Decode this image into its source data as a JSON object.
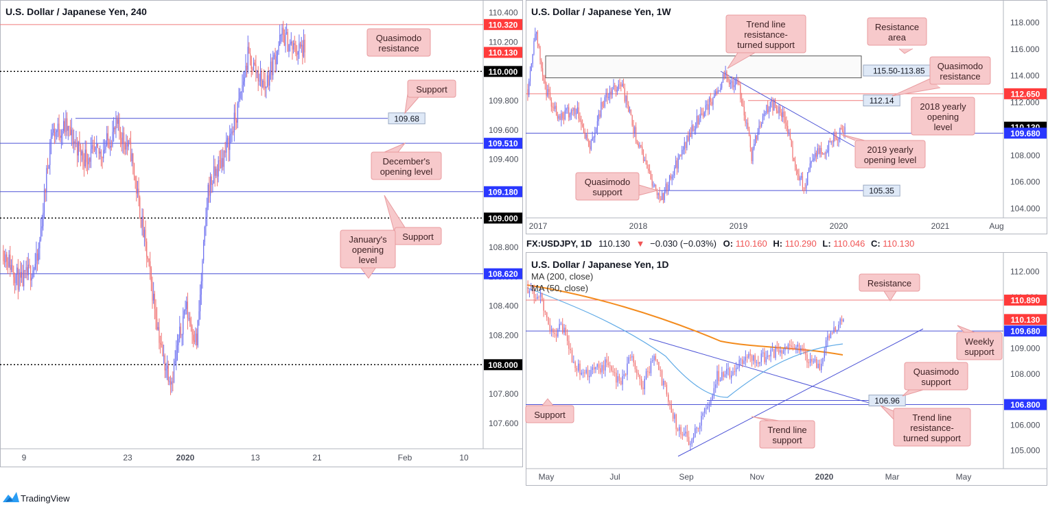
{
  "colors": {
    "up": "#6b6ef0",
    "down": "#f07070",
    "panel_border": "#b2b5be",
    "axis_text": "#4a4e59",
    "note_fill": "#f7c9cb",
    "note_stroke": "#e89a9e",
    "note_text": "#3b1f22",
    "box_fill": "#dfe9f7",
    "box_stroke": "#9aa9c2",
    "blue_line": "#4b52d6",
    "red_line": "#f07a7a",
    "ma200": "#f38b1d",
    "ma50": "#5da9e6",
    "price_red": "#ff3b3b",
    "price_blue": "#2a38ff",
    "price_black": "#000000"
  },
  "logo": {
    "text": "TradingView",
    "icon": "tradingview-logo-icon"
  },
  "chart_data": [
    {
      "id": "h4",
      "type": "candlestick",
      "title": "U.S. Dollar / Japanese Yen, 240",
      "x_ticks": [
        "9",
        "23",
        "2020",
        "13",
        "21",
        "Feb",
        "10"
      ],
      "y_ticks": [
        "110.400",
        "110.200",
        "109.800",
        "109.600",
        "109.400",
        "108.800",
        "108.600",
        "108.400",
        "108.200",
        "107.800",
        "107.600"
      ],
      "ylim": [
        107.45,
        110.45
      ],
      "candles_approx": {
        "start": 108.78,
        "anchors": [
          [
            0,
            108.78
          ],
          [
            15,
            108.55
          ],
          [
            30,
            108.7
          ],
          [
            42,
            109.58
          ],
          [
            55,
            109.62
          ],
          [
            70,
            109.42
          ],
          [
            85,
            109.44
          ],
          [
            100,
            109.62
          ],
          [
            112,
            109.45
          ],
          [
            125,
            108.8
          ],
          [
            140,
            108.05
          ],
          [
            148,
            107.9
          ],
          [
            160,
            108.4
          ],
          [
            170,
            108.15
          ],
          [
            180,
            109.2
          ],
          [
            195,
            109.45
          ],
          [
            205,
            109.7
          ],
          [
            215,
            110.1
          ],
          [
            230,
            109.9
          ],
          [
            245,
            110.25
          ],
          [
            255,
            110.15
          ],
          [
            265,
            110.15
          ]
        ],
        "last_close": 110.13
      },
      "levels": [
        {
          "value": 110.32,
          "style": "solid",
          "color": "red",
          "tag": "110.320",
          "tag_style": "red"
        },
        {
          "value": 110.0,
          "style": "dotted",
          "color": "black",
          "tag": "110.000",
          "tag_style": "black"
        },
        {
          "value": 109.68,
          "style": "segment",
          "color": "blue",
          "tag": "",
          "box": "109.68"
        },
        {
          "value": 109.51,
          "style": "solid",
          "color": "blue",
          "tag": "109.510",
          "tag_style": "blue"
        },
        {
          "value": 109.18,
          "style": "solid",
          "color": "blue",
          "tag": "109.180",
          "tag_style": "blue"
        },
        {
          "value": 109.0,
          "style": "dotted",
          "color": "black",
          "tag": "109.000",
          "tag_style": "black"
        },
        {
          "value": 108.62,
          "style": "solid",
          "color": "blue",
          "tag": "108.620",
          "tag_style": "blue"
        },
        {
          "value": 108.0,
          "style": "dotted",
          "color": "black",
          "tag": "108.000",
          "tag_style": "black"
        }
      ],
      "current_price_tag": "110.130",
      "notes": [
        {
          "lines": [
            "Quasimodo",
            "resistance"
          ]
        },
        {
          "lines": [
            "Support"
          ]
        },
        {
          "lines": [
            "December's",
            "opening level"
          ]
        },
        {
          "lines": [
            "Support"
          ]
        },
        {
          "lines": [
            "January's",
            "opening",
            "level"
          ]
        }
      ]
    },
    {
      "id": "w1",
      "type": "candlestick",
      "title": "U.S. Dollar / Japanese Yen, 1W",
      "x_ticks": [
        "2017",
        "2018",
        "2019",
        "2020",
        "2021",
        "Aug"
      ],
      "y_ticks": [
        "118.000",
        "116.000",
        "114.000",
        "112.000",
        "110.000",
        "108.000",
        "106.000",
        "104.000"
      ],
      "ylim": [
        103.5,
        119.2
      ],
      "candles_approx": {
        "anchors": [
          [
            0,
            113.0
          ],
          [
            6,
            117.5
          ],
          [
            14,
            113.0
          ],
          [
            25,
            111.0
          ],
          [
            40,
            111.5
          ],
          [
            50,
            108.5
          ],
          [
            60,
            112.0
          ],
          [
            75,
            113.5
          ],
          [
            85,
            110.0
          ],
          [
            100,
            106.0
          ],
          [
            108,
            104.8
          ],
          [
            118,
            107.0
          ],
          [
            135,
            110.5
          ],
          [
            150,
            112.5
          ],
          [
            158,
            114.0
          ],
          [
            170,
            113.2
          ],
          [
            180,
            108.0
          ],
          [
            190,
            111.5
          ],
          [
            198,
            111.8
          ],
          [
            208,
            110.5
          ],
          [
            215,
            107.0
          ],
          [
            222,
            105.6
          ],
          [
            230,
            108.0
          ],
          [
            240,
            108.6
          ],
          [
            250,
            109.6
          ],
          [
            255,
            110.1
          ]
        ],
        "last_close": 110.13
      },
      "levels": [
        {
          "value": 112.65,
          "style": "solid",
          "color": "red",
          "tag": "112.650",
          "tag_style": "red"
        },
        {
          "value": 109.68,
          "style": "solid",
          "color": "blue",
          "tag": "109.680",
          "tag_style": "blue"
        },
        {
          "value": 105.35,
          "style": "segment",
          "color": "blue",
          "box": "105.35"
        }
      ],
      "resistance_area": {
        "top": 115.5,
        "bottom": 113.85,
        "label": "115.50-113.85"
      },
      "box_112": "112.14",
      "current_price_tag": "110.130",
      "notes": [
        {
          "lines": [
            "Trend line",
            "resistance-",
            "turned support"
          ]
        },
        {
          "lines": [
            "Resistance",
            "area"
          ]
        },
        {
          "lines": [
            "Quasimodo",
            "resistance"
          ]
        },
        {
          "lines": [
            "2018 yearly",
            "opening",
            "level"
          ]
        },
        {
          "lines": [
            "2019 yearly",
            "opening level"
          ]
        },
        {
          "lines": [
            "Quasimodo",
            "support"
          ]
        }
      ]
    },
    {
      "id": "d1",
      "type": "candlestick",
      "title": "U.S. Dollar / Japanese Yen, 1D",
      "info_bar": {
        "symbol": "FX:USDJPY, 1D",
        "last": "110.130",
        "change": "−0.030 (−0.03%)",
        "o_label": "O:",
        "o": "110.160",
        "h_label": "H:",
        "h": "110.290",
        "l_label": "L:",
        "l": "110.046",
        "c_label": "C:",
        "c": "110.130"
      },
      "legend": [
        "MA (200, close)",
        "MA (50, close)"
      ],
      "x_ticks": [
        "May",
        "Jul",
        "Sep",
        "Nov",
        "2020",
        "Mar",
        "May"
      ],
      "y_ticks": [
        "112.000",
        "111.000",
        "109.000",
        "108.000",
        "106.000",
        "105.000"
      ],
      "ylim": [
        104.4,
        112.5
      ],
      "candles_approx": {
        "anchors": [
          [
            0,
            111.4
          ],
          [
            8,
            111.0
          ],
          [
            15,
            109.6
          ],
          [
            22,
            109.8
          ],
          [
            30,
            108.3
          ],
          [
            40,
            108.0
          ],
          [
            50,
            108.4
          ],
          [
            58,
            107.6
          ],
          [
            66,
            108.8
          ],
          [
            72,
            107.5
          ],
          [
            80,
            108.6
          ],
          [
            88,
            107.2
          ],
          [
            95,
            105.8
          ],
          [
            103,
            105.4
          ],
          [
            112,
            106.5
          ],
          [
            120,
            107.9
          ],
          [
            130,
            108.1
          ],
          [
            140,
            108.7
          ],
          [
            150,
            108.6
          ],
          [
            160,
            108.9
          ],
          [
            170,
            109.0
          ],
          [
            178,
            108.6
          ],
          [
            185,
            108.3
          ],
          [
            192,
            109.7
          ],
          [
            200,
            110.13
          ]
        ],
        "last_close": 110.13
      },
      "levels": [
        {
          "value": 110.89,
          "style": "solid",
          "color": "red",
          "tag": "110.890",
          "tag_style": "red"
        },
        {
          "value": 109.68,
          "style": "solid",
          "color": "blue",
          "tag": "109.680",
          "tag_style": "blue"
        },
        {
          "value": 106.8,
          "style": "solid",
          "color": "blue",
          "tag": "106.800",
          "tag_style": "blue"
        },
        {
          "value": 106.96,
          "style": "segment",
          "color": "blue",
          "box": "106.96"
        }
      ],
      "current_price_tag": "110.130",
      "notes": [
        {
          "lines": [
            "Resistance"
          ]
        },
        {
          "lines": [
            "Weekly",
            "support"
          ]
        },
        {
          "lines": [
            "Quasimodo",
            "support"
          ]
        },
        {
          "lines": [
            "Support"
          ]
        },
        {
          "lines": [
            "Trend line",
            "support"
          ]
        },
        {
          "lines": [
            "Trend line",
            "resistance-",
            "turned support"
          ]
        }
      ]
    }
  ]
}
